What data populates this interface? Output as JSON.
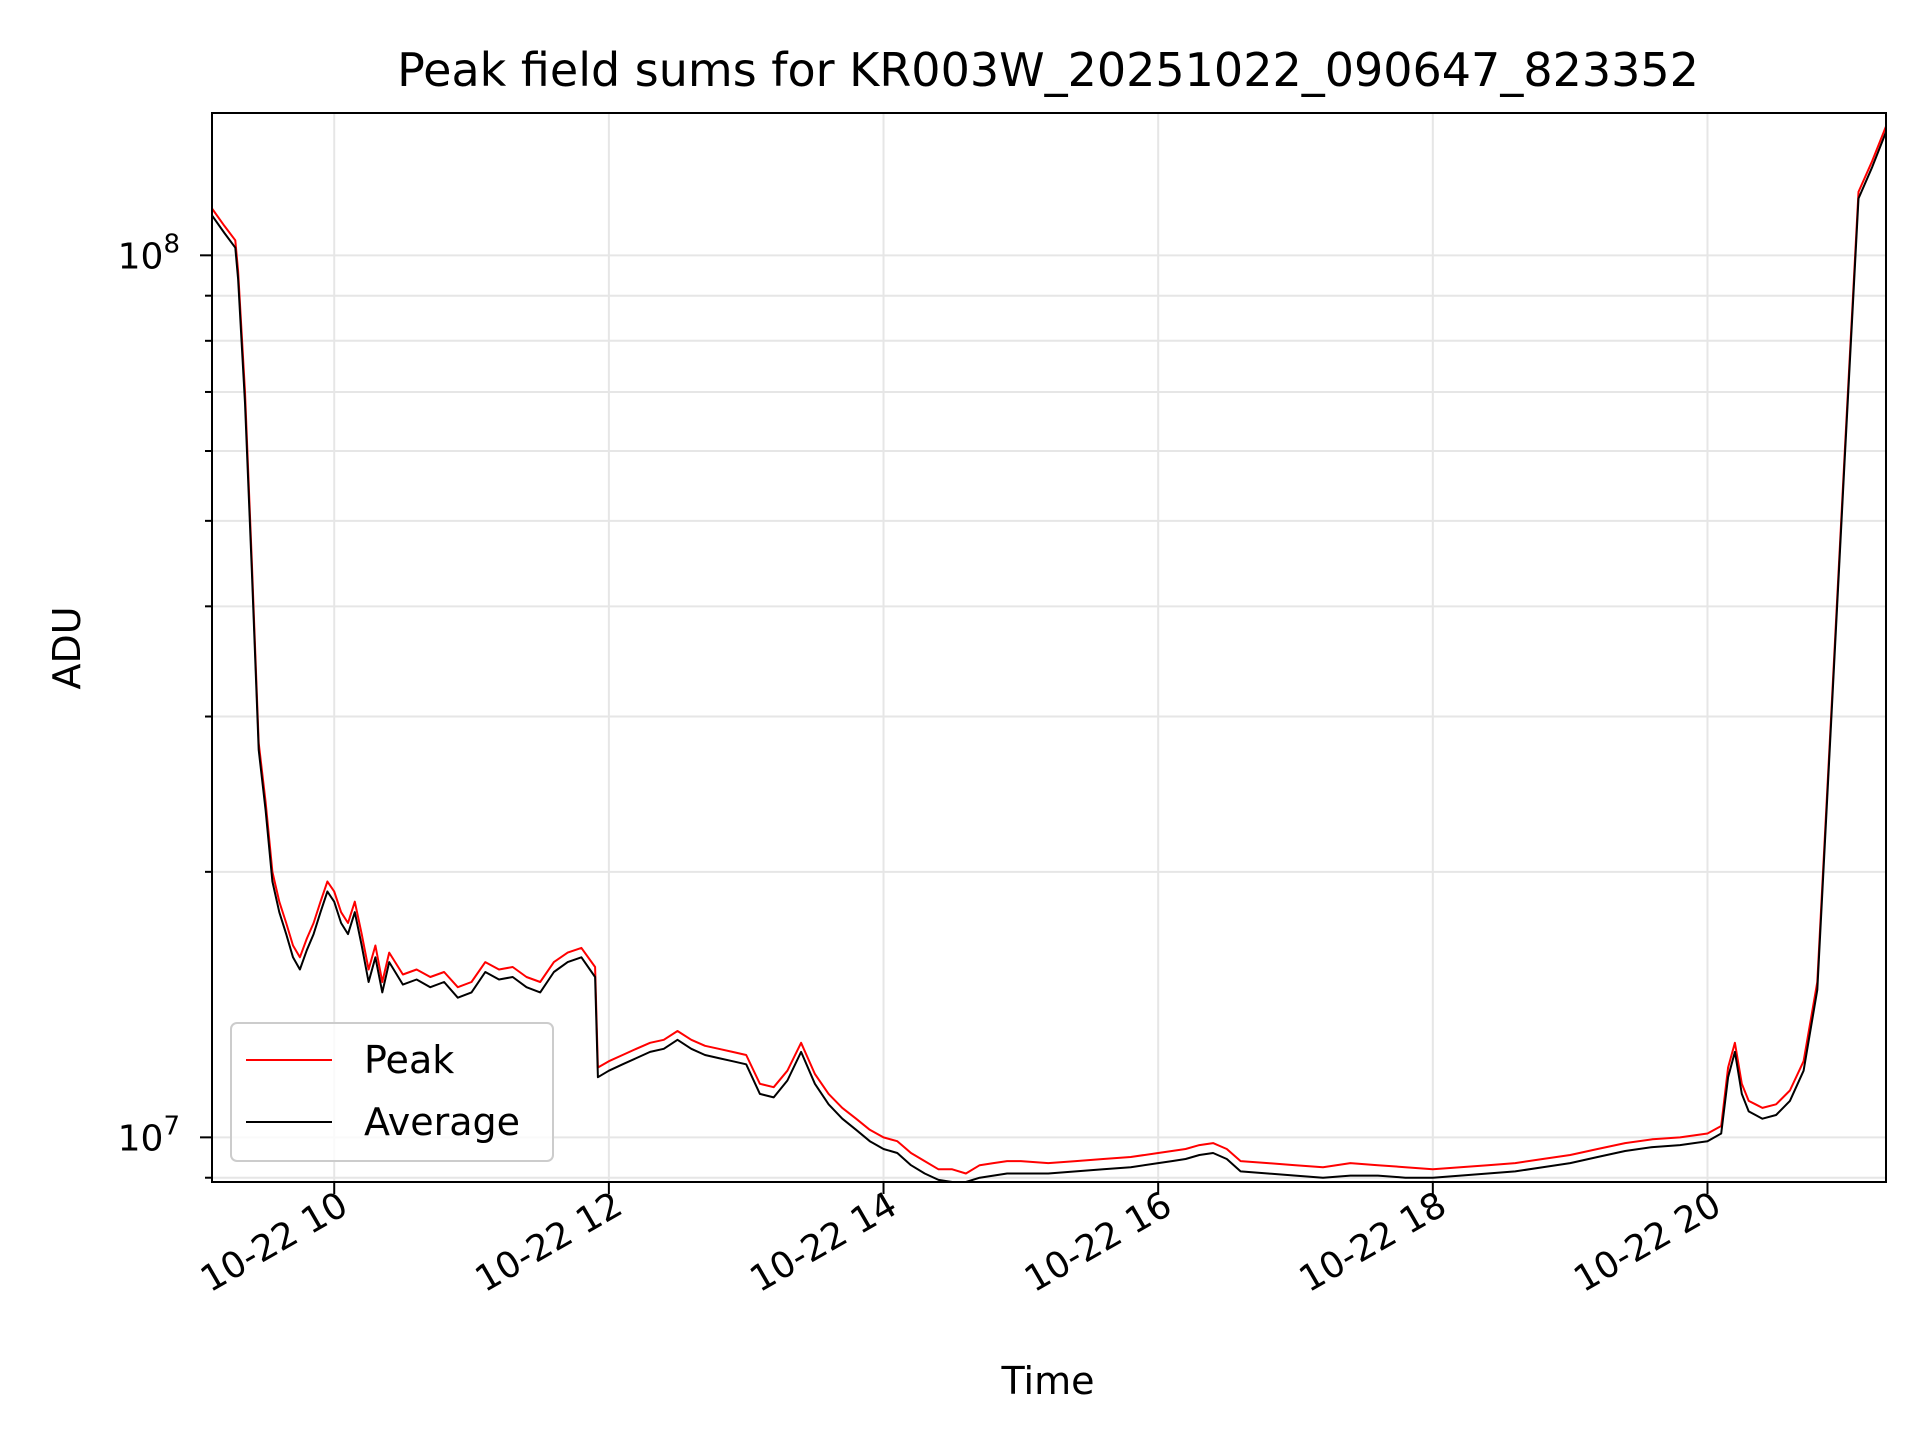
{
  "chart_data": {
    "type": "line",
    "title": "Peak field sums for KR003W_20251022_090647_823352",
    "xlabel": "Time",
    "ylabel": "ADU",
    "yscale": "log",
    "x_unit": "hours since 10-22 00:00",
    "xlim": [
      9.11,
      21.3
    ],
    "ylim": [
      8900000.0,
      145000000
    ],
    "grid": true,
    "legend_position": "lower-left",
    "x_ticks": [
      {
        "value": 10,
        "label": "10-22 10"
      },
      {
        "value": 12,
        "label": "10-22 12"
      },
      {
        "value": 14,
        "label": "10-22 14"
      },
      {
        "value": 16,
        "label": "10-22 16"
      },
      {
        "value": 18,
        "label": "10-22 18"
      },
      {
        "value": 20,
        "label": "10-22 20"
      }
    ],
    "y_ticks": [
      {
        "value": 10000000,
        "base": "10",
        "exponent": "7"
      },
      {
        "value": 100000000,
        "base": "10",
        "exponent": "8"
      }
    ],
    "series": [
      {
        "name": "Peak",
        "color": "#ff0000",
        "x": [
          9.11,
          9.2,
          9.28,
          9.3,
          9.35,
          9.4,
          9.45,
          9.5,
          9.55,
          9.6,
          9.65,
          9.7,
          9.75,
          9.8,
          9.85,
          9.9,
          9.95,
          10.0,
          10.05,
          10.1,
          10.15,
          10.2,
          10.25,
          10.3,
          10.35,
          10.4,
          10.5,
          10.6,
          10.7,
          10.8,
          10.9,
          11.0,
          11.1,
          11.2,
          11.3,
          11.4,
          11.5,
          11.6,
          11.7,
          11.8,
          11.9,
          11.92,
          12.0,
          12.1,
          12.2,
          12.3,
          12.4,
          12.5,
          12.6,
          12.7,
          12.8,
          12.9,
          13.0,
          13.1,
          13.2,
          13.3,
          13.4,
          13.5,
          13.6,
          13.7,
          13.8,
          13.9,
          14.0,
          14.1,
          14.2,
          14.3,
          14.4,
          14.5,
          14.6,
          14.7,
          14.8,
          14.9,
          15.0,
          15.2,
          15.4,
          15.6,
          15.8,
          16.0,
          16.1,
          16.2,
          16.3,
          16.4,
          16.5,
          16.6,
          16.8,
          17.0,
          17.2,
          17.4,
          17.6,
          17.8,
          18.0,
          18.2,
          18.4,
          18.6,
          18.8,
          19.0,
          19.2,
          19.4,
          19.6,
          19.8,
          20.0,
          20.1,
          20.15,
          20.2,
          20.25,
          20.3,
          20.35,
          20.4,
          20.5,
          20.6,
          20.7,
          20.8,
          20.9,
          21.0,
          21.1,
          21.2,
          21.3
        ],
        "values": [
          113000000,
          108000000,
          104000000,
          96000000,
          70000000,
          45000000,
          28000000,
          24000000,
          20000000,
          18500000,
          17500000,
          16500000,
          16000000,
          16800000,
          17500000,
          18500000,
          19500000,
          19000000,
          18000000,
          17500000,
          18500000,
          17000000,
          15500000,
          16500000,
          15000000,
          16200000,
          15300000,
          15500000,
          15200000,
          15400000,
          14800000,
          15000000,
          15800000,
          15500000,
          15600000,
          15200000,
          15000000,
          15800000,
          16200000,
          16400000,
          15600000,
          12000000,
          12200000,
          12400000,
          12600000,
          12800000,
          12900000,
          13200000,
          12900000,
          12700000,
          12600000,
          12500000,
          12400000,
          11500000,
          11400000,
          11900000,
          12800000,
          11800000,
          11200000,
          10800000,
          10500000,
          10200000,
          10000000,
          9900000,
          9600000,
          9400000,
          9200000,
          9200000,
          9100000,
          9300000,
          9350000,
          9400000,
          9400000,
          9350000,
          9400000,
          9450000,
          9500000,
          9600000,
          9650000,
          9700000,
          9800000,
          9850000,
          9700000,
          9400000,
          9350000,
          9300000,
          9250000,
          9350000,
          9300000,
          9250000,
          9200000,
          9250000,
          9300000,
          9350000,
          9450000,
          9550000,
          9700000,
          9850000,
          9950000,
          10000000,
          10100000,
          10300000,
          12000000,
          12800000,
          11500000,
          11000000,
          10900000,
          10800000,
          10900000,
          11300000,
          12200000,
          15000000,
          30000000,
          60000000,
          118000000,
          128000000,
          140000000
        ]
      },
      {
        "name": "Average",
        "color": "#000000",
        "x": [
          9.11,
          9.2,
          9.28,
          9.3,
          9.35,
          9.4,
          9.45,
          9.5,
          9.55,
          9.6,
          9.65,
          9.7,
          9.75,
          9.8,
          9.85,
          9.9,
          9.95,
          10.0,
          10.05,
          10.1,
          10.15,
          10.2,
          10.25,
          10.3,
          10.35,
          10.4,
          10.5,
          10.6,
          10.7,
          10.8,
          10.9,
          11.0,
          11.1,
          11.2,
          11.3,
          11.4,
          11.5,
          11.6,
          11.7,
          11.8,
          11.9,
          11.92,
          12.0,
          12.1,
          12.2,
          12.3,
          12.4,
          12.5,
          12.6,
          12.7,
          12.8,
          12.9,
          13.0,
          13.1,
          13.2,
          13.3,
          13.4,
          13.5,
          13.6,
          13.7,
          13.8,
          13.9,
          14.0,
          14.1,
          14.2,
          14.3,
          14.4,
          14.5,
          14.6,
          14.7,
          14.8,
          14.9,
          15.0,
          15.2,
          15.4,
          15.6,
          15.8,
          16.0,
          16.1,
          16.2,
          16.3,
          16.4,
          16.5,
          16.6,
          16.8,
          17.0,
          17.2,
          17.4,
          17.6,
          17.8,
          18.0,
          18.2,
          18.4,
          18.6,
          18.8,
          19.0,
          19.2,
          19.4,
          19.6,
          19.8,
          20.0,
          20.1,
          20.15,
          20.2,
          20.25,
          20.3,
          20.35,
          20.4,
          20.5,
          20.6,
          20.7,
          20.8,
          20.9,
          21.0,
          21.1,
          21.2,
          21.3
        ],
        "values": [
          111000000,
          106000000,
          102000000,
          94000000,
          68000000,
          44000000,
          27500000,
          23500000,
          19500000,
          18000000,
          17000000,
          16000000,
          15500000,
          16300000,
          17000000,
          18000000,
          19000000,
          18500000,
          17500000,
          17000000,
          18000000,
          16500000,
          15000000,
          16000000,
          14600000,
          15800000,
          14900000,
          15100000,
          14800000,
          15000000,
          14400000,
          14600000,
          15400000,
          15100000,
          15200000,
          14800000,
          14600000,
          15400000,
          15800000,
          16000000,
          15200000,
          11700000,
          11900000,
          12100000,
          12300000,
          12500000,
          12600000,
          12900000,
          12600000,
          12400000,
          12300000,
          12200000,
          12100000,
          11200000,
          11100000,
          11600000,
          12500000,
          11500000,
          10900000,
          10500000,
          10200000,
          9900000,
          9700000,
          9600000,
          9300000,
          9100000,
          8950000,
          8900000,
          8900000,
          9000000,
          9050000,
          9100000,
          9100000,
          9100000,
          9150000,
          9200000,
          9250000,
          9350000,
          9400000,
          9450000,
          9550000,
          9600000,
          9450000,
          9150000,
          9100000,
          9050000,
          9000000,
          9050000,
          9050000,
          9000000,
          9000000,
          9050000,
          9100000,
          9150000,
          9250000,
          9350000,
          9500000,
          9650000,
          9750000,
          9800000,
          9900000,
          10100000,
          11700000,
          12500000,
          11200000,
          10700000,
          10600000,
          10500000,
          10600000,
          11000000,
          11900000,
          14700000,
          29500000,
          59000000,
          116000000,
          126000000,
          138000000
        ]
      }
    ]
  }
}
